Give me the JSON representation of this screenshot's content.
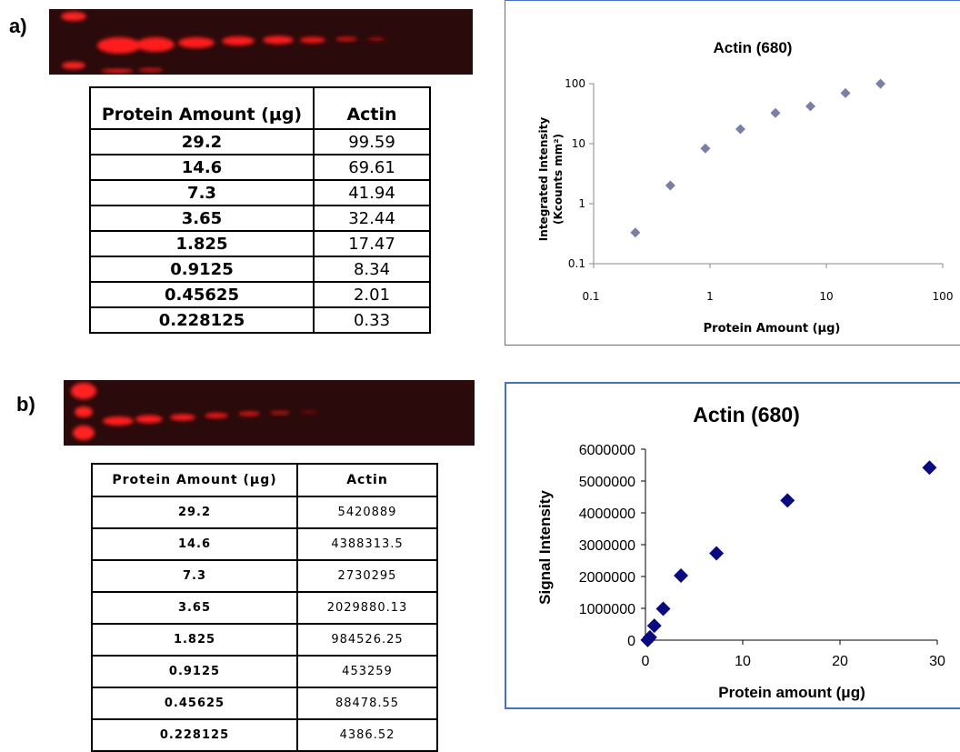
{
  "panel_a": {
    "label": "a)",
    "table": {
      "headers": [
        "Protein Amount (μg)",
        "Actin"
      ],
      "rows": [
        [
          "29.2",
          "99.59"
        ],
        [
          "14.6",
          "69.61"
        ],
        [
          "7.3",
          "41.94"
        ],
        [
          "3.65",
          "32.44"
        ],
        [
          "1.825",
          "17.47"
        ],
        [
          "0.9125",
          "8.34"
        ],
        [
          "0.45625",
          "2.01"
        ],
        [
          "0.228125",
          "0.33"
        ]
      ]
    }
  },
  "panel_b": {
    "label": "b)",
    "table": {
      "headers": [
        "Protein Amount (μg)",
        "Actin"
      ],
      "rows": [
        [
          "29.2",
          "5420889"
        ],
        [
          "14.6",
          "4388313.5"
        ],
        [
          "7.3",
          "2730295"
        ],
        [
          "3.65",
          "2029880.13"
        ],
        [
          "1.825",
          "984526.25"
        ],
        [
          "0.9125",
          "453259"
        ],
        [
          "0.45625",
          "88478.55"
        ],
        [
          "0.228125",
          "4386.52"
        ]
      ]
    }
  },
  "colors": {
    "blot_background": "#2a0a0a",
    "band": "#ff1a1a",
    "frame_border": "#4a6fc7",
    "marker_a": "#7b7fa8",
    "marker_b": "#0a0a80"
  },
  "chart_data": [
    {
      "type": "scatter",
      "title": "Actin (680)",
      "xlabel": "Protein Amount (μg)",
      "ylabel_line1": "Integrated Intensity",
      "ylabel_line2": "(Kcounts mm²)",
      "x_scale": "log",
      "y_scale": "log",
      "xlim": [
        0.1,
        100
      ],
      "ylim": [
        0.1,
        100
      ],
      "x_ticks": [
        "0.1",
        "1",
        "10",
        "100"
      ],
      "y_ticks": [
        "0.1",
        "1",
        "10",
        "100"
      ],
      "marker": "diamond",
      "grid": false,
      "points": [
        {
          "x": 0.228125,
          "y": 0.33
        },
        {
          "x": 0.45625,
          "y": 2.01
        },
        {
          "x": 0.9125,
          "y": 8.34
        },
        {
          "x": 1.825,
          "y": 17.47
        },
        {
          "x": 3.65,
          "y": 32.44
        },
        {
          "x": 7.3,
          "y": 41.94
        },
        {
          "x": 14.6,
          "y": 69.61
        },
        {
          "x": 29.2,
          "y": 99.59
        }
      ]
    },
    {
      "type": "scatter",
      "title": "Actin (680)",
      "xlabel": "Protein amount (μg)",
      "ylabel": "Signal Intensity",
      "x_scale": "linear",
      "y_scale": "linear",
      "xlim": [
        0,
        30
      ],
      "ylim": [
        0,
        6000000
      ],
      "x_ticks": [
        "0",
        "10",
        "20",
        "30"
      ],
      "y_ticks": [
        "0",
        "1000000",
        "2000000",
        "3000000",
        "4000000",
        "5000000",
        "6000000"
      ],
      "marker": "diamond",
      "grid": false,
      "points": [
        {
          "x": 0.228125,
          "y": 4386.52
        },
        {
          "x": 0.45625,
          "y": 88478.55
        },
        {
          "x": 0.9125,
          "y": 453259
        },
        {
          "x": 1.825,
          "y": 984526.25
        },
        {
          "x": 3.65,
          "y": 2029880.13
        },
        {
          "x": 7.3,
          "y": 2730295
        },
        {
          "x": 14.6,
          "y": 4388313.5
        },
        {
          "x": 29.2,
          "y": 5420889
        }
      ]
    }
  ]
}
